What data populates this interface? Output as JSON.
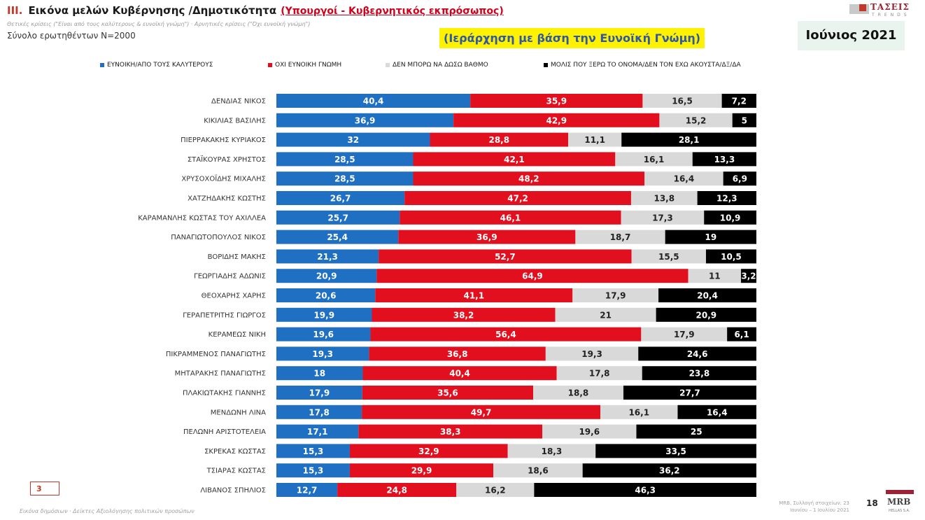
{
  "header": {
    "section": "III.",
    "title": "Εικόνα μελών Κυβέρνησης /Δημοτικότητα",
    "subtitle_red": "(Υπουργοί - Κυβερνητικός εκπρόσωπος)",
    "note": "Θετικές κρίσεις (\"Είναι από τους καλύτερους & ευνοϊκή γνώμη\") · Αρνητικές κρίσεις (\"Όχι ευνοϊκή γνώμη\")",
    "sample": "Σύνολο ερωτηθέντων Ν=2000",
    "ranking": "(Ιεράρχηση με βάση την Ευνοϊκή Γνώμη)",
    "period": "Ιούνιος 2021",
    "logo_name": "ΤΑΣΕΙΣ",
    "logo_sub": "TRENDS"
  },
  "colors": {
    "favorable": "#1f6fc2",
    "unfavorable": "#e2101e",
    "no_rating": "#d9d9d9",
    "unknown": "#000000"
  },
  "chart_data": {
    "type": "bar",
    "stacked": true,
    "orientation": "horizontal",
    "categories": [
      "ΔΕΝΔΙΑΣ ΝΙΚΟΣ",
      "ΚΙΚΙΛΙΑΣ ΒΑΣΙΛΗΣ",
      "ΠΙΕΡΡΑΚΑΚΗΣ ΚΥΡΙΑΚΟΣ",
      "ΣΤΑΪΚΟΥΡΑΣ ΧΡΗΣΤΟΣ",
      "ΧΡΥΣΟΧΟΪΔΗΣ ΜΙΧΑΛΗΣ",
      "ΧΑΤΖΗΔΑΚΗΣ ΚΩΣΤΗΣ",
      "ΚΑΡΑΜΑΝΛΗΣ ΚΩΣΤΑΣ ΤΟΥ ΑΧΙΛΛΕΑ",
      "ΠΑΝΑΓΙΩΤΟΠΟΥΛΟΣ ΝΙΚΟΣ",
      "ΒΟΡΙΔΗΣ ΜΑΚΗΣ",
      "ΓΕΩΡΓΙΑΔΗΣ ΑΔΩΝΙΣ",
      "ΘΕΟΧΑΡΗΣ ΧΑΡΗΣ",
      "ΓΕΡΑΠΕΤΡΙΤΗΣ ΓΙΩΡΓΟΣ",
      "ΚΕΡΑΜΕΩΣ ΝΙΚΗ",
      "ΠΙΚΡΑΜΜΕΝΟΣ ΠΑΝΑΓΙΩΤΗΣ",
      "ΜΗΤΑΡΑΚΗΣ ΠΑΝΑΓΙΩΤΗΣ",
      "ΠΛΑΚΙΩΤΑΚΗΣ ΓΙΑΝΝΗΣ",
      "ΜΕΝΔΩΝΗ ΛΙΝΑ",
      "ΠΕΛΩΝΗ ΑΡΙΣΤΟΤΕΛΕΙΑ",
      "ΣΚΡΕΚΑΣ ΚΩΣΤΑΣ",
      "ΤΣΙΑΡΑΣ ΚΩΣΤΑΣ",
      "ΛΙΒΑΝΟΣ ΣΠΗΛΙΟΣ"
    ],
    "series": [
      {
        "name": "ΕΥΝΟΙΚΗ/ΑΠΟ ΤΟΥΣ ΚΑΛΥΤΕΡΟΥΣ",
        "values": [
          40.4,
          36.9,
          32,
          28.5,
          28.5,
          26.7,
          25.7,
          25.4,
          21.3,
          20.9,
          20.6,
          19.9,
          19.6,
          19.3,
          18,
          17.9,
          17.8,
          17.1,
          15.3,
          15.3,
          12.7
        ]
      },
      {
        "name": "ΟΧΙ ΕΥΝΟΙΚΗ ΓΝΩΜΗ",
        "values": [
          35.9,
          42.9,
          28.8,
          42.1,
          48.2,
          47.2,
          46.1,
          36.9,
          52.7,
          64.9,
          41.1,
          38.2,
          56.4,
          36.8,
          40.4,
          35.6,
          49.7,
          38.3,
          32.9,
          29.9,
          24.8
        ]
      },
      {
        "name": "ΔΕΝ ΜΠΟΡΩ ΝΑ ΔΩΣΩ ΒΑΘΜΟ",
        "values": [
          16.5,
          15.2,
          11.1,
          16.1,
          16.4,
          13.8,
          17.3,
          18.7,
          15.5,
          11,
          17.9,
          21,
          17.9,
          19.3,
          17.8,
          18.8,
          16.1,
          19.6,
          18.3,
          18.6,
          16.2
        ]
      },
      {
        "name": "ΜΟΛΙΣ ΠΟΥ ΞΕΡΩ ΤΟ ΟΝΟΜΑ/ΔΕΝ ΤΟΝ ΕΧΩ ΑΚΟΥΣΤΑ/ΔΞ/ΔΑ",
        "values": [
          7.2,
          5,
          28.1,
          13.3,
          6.9,
          12.3,
          10.9,
          19,
          10.5,
          3.2,
          20.4,
          20.9,
          6.1,
          24.6,
          23.8,
          27.7,
          16.4,
          25,
          33.5,
          36.2,
          46.3
        ]
      }
    ],
    "xlim": [
      0,
      100
    ]
  },
  "footer": {
    "page_box": "3",
    "left": "Εικόνα δημόσιων · Δείκτες Αξιολόγησης πολιτικών προσώπων",
    "source": "MRB, Συλλογή στοιχείων: 23 Ιουνίου – 1 Ιουλίου 2021",
    "page_number": "18",
    "mrb": "MRB",
    "mrb_sub": "HELLAS S.A."
  }
}
